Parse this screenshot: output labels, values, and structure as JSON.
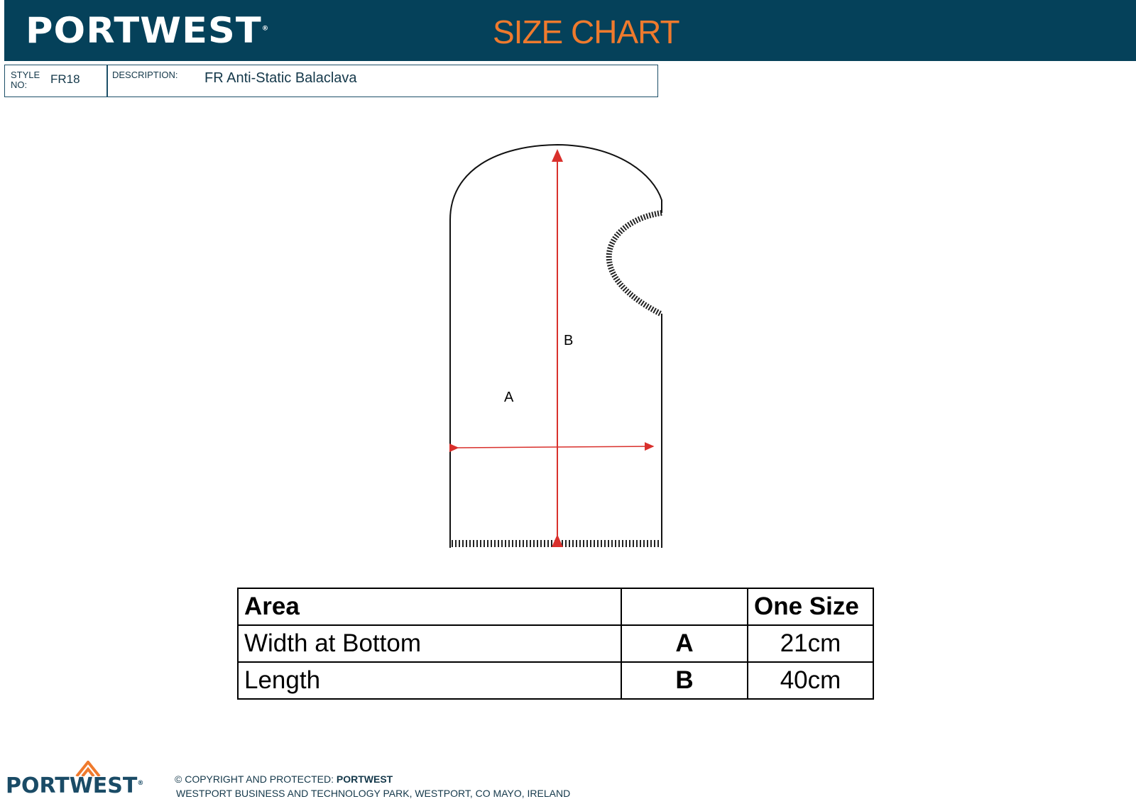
{
  "header": {
    "brand": "PORTWEST",
    "title": "SIZE CHART"
  },
  "info": {
    "style_label": "STYLE NO:",
    "style_value": "FR18",
    "description_label": "DESCRIPTION:",
    "description_value": "FR Anti-Static Balaclava"
  },
  "diagram": {
    "label_a": "A",
    "label_b": "B",
    "arrow_color": "#d9302c"
  },
  "table": {
    "headers": [
      "Area",
      "",
      "One Size"
    ],
    "rows": [
      {
        "area": "Width at Bottom",
        "code": "A",
        "value": "21cm"
      },
      {
        "area": "Length",
        "code": "B",
        "value": "40cm"
      }
    ]
  },
  "footer": {
    "brand": "PORTWEST",
    "copyright_prefix": "© COPYRIGHT AND PROTECTED: ",
    "copyright_brand": "PORTWEST",
    "address": "WESTPORT BUSINESS AND TECHNOLOGY PARK, WESTPORT, CO MAYO, IRELAND"
  }
}
